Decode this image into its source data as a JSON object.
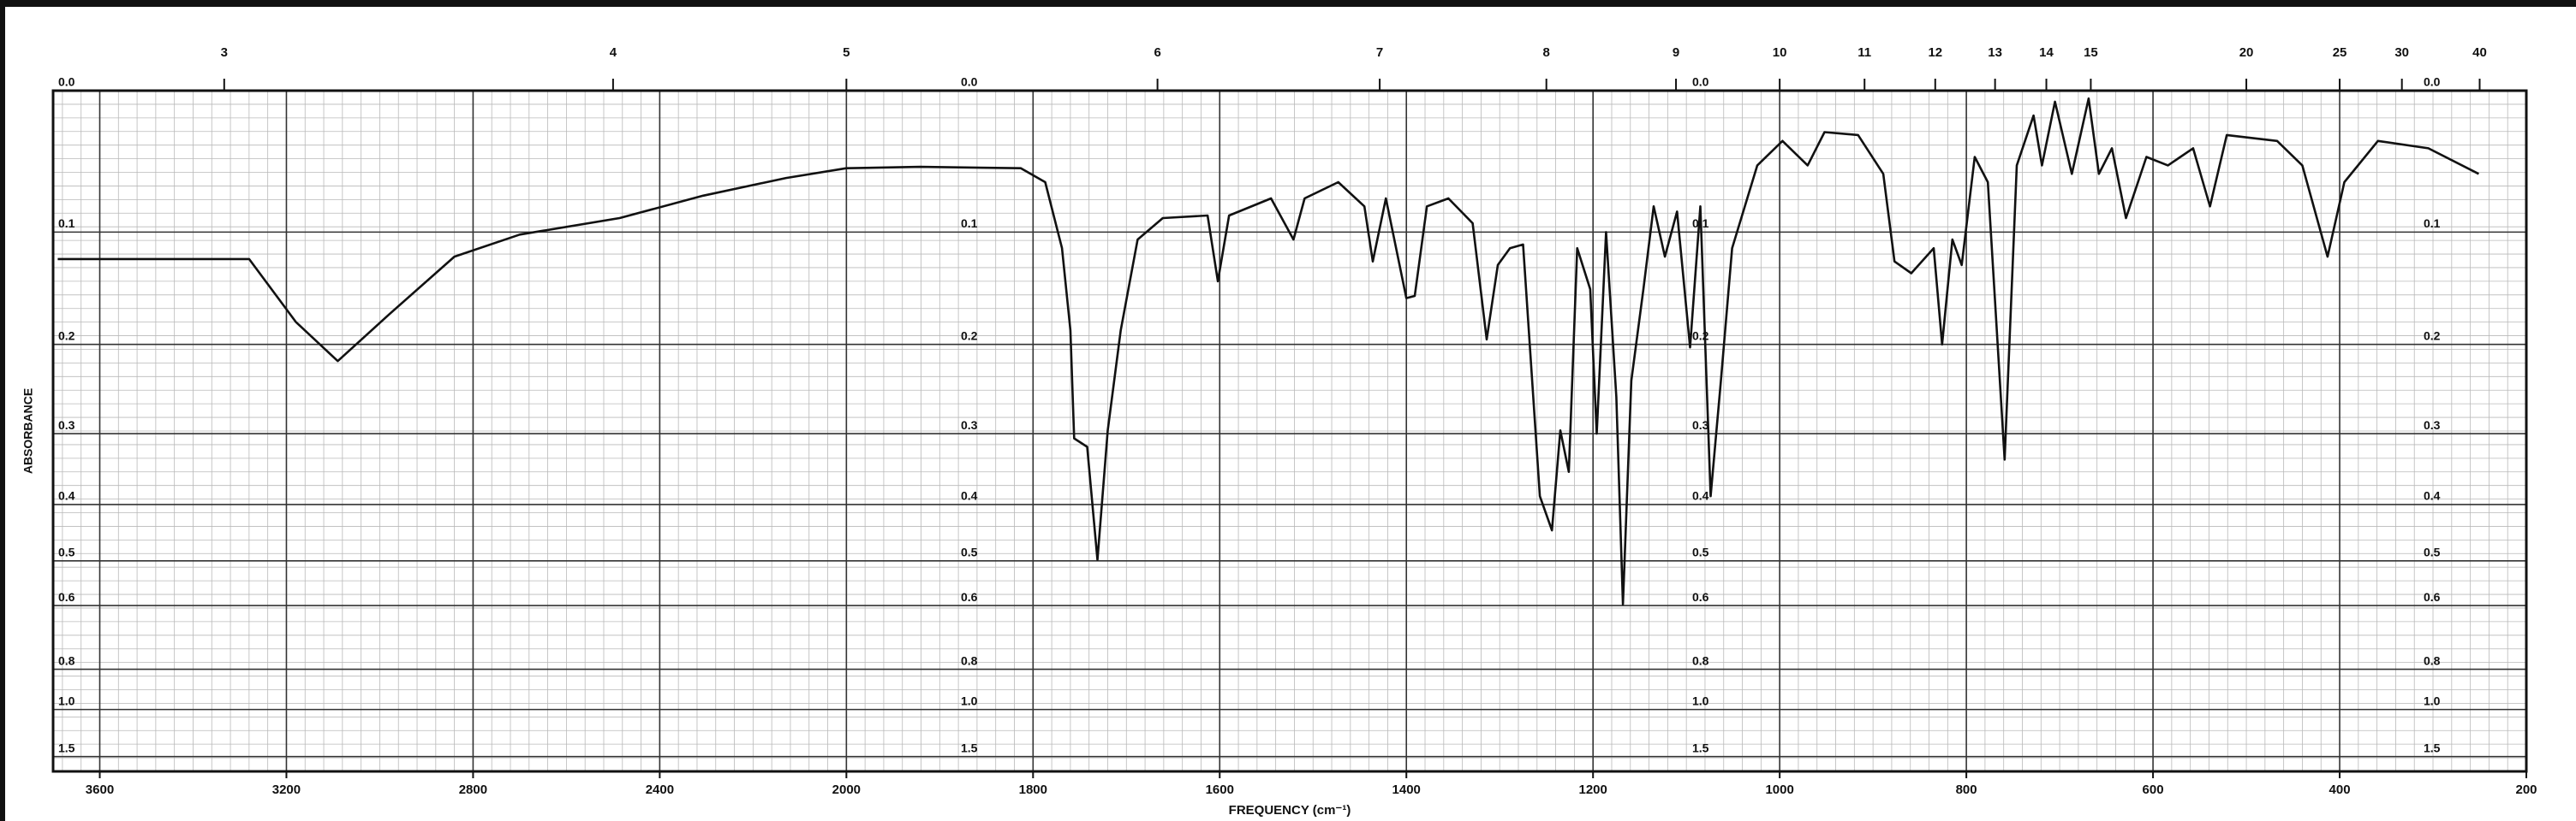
{
  "chart_data": {
    "type": "line",
    "xlabel": "FREQUENCY (cm⁻¹)",
    "ylabel": "ABSORBANCE",
    "x": [
      3690,
      3280,
      3180,
      3090,
      2980,
      2840,
      2700,
      2486,
      2307,
      2129,
      2000,
      1921,
      1813,
      1787,
      1769,
      1760,
      1756,
      1742,
      1731,
      1720,
      1706,
      1688,
      1661,
      1613,
      1602,
      1590,
      1545,
      1521,
      1509,
      1473,
      1445,
      1436,
      1422,
      1400,
      1391,
      1378,
      1355,
      1329,
      1314,
      1302,
      1289,
      1275,
      1257,
      1244,
      1235,
      1226,
      1217,
      1203,
      1196,
      1186,
      1175,
      1168,
      1159,
      1146,
      1135,
      1123,
      1110,
      1096,
      1085,
      1074,
      1063,
      1051,
      1024,
      997,
      970,
      952,
      916,
      889,
      877,
      859,
      835,
      826,
      815,
      805,
      791,
      777,
      759,
      746,
      728,
      719,
      705,
      687,
      669,
      658,
      644,
      629,
      607,
      584,
      557,
      539,
      521,
      467,
      440,
      413,
      395,
      359,
      305,
      251
    ],
    "values": [
      0.122,
      0.122,
      0.178,
      0.217,
      0.171,
      0.12,
      0.102,
      0.089,
      0.072,
      0.059,
      0.052,
      0.051,
      0.052,
      0.062,
      0.113,
      0.186,
      0.306,
      0.317,
      0.498,
      0.296,
      0.186,
      0.106,
      0.089,
      0.087,
      0.141,
      0.087,
      0.074,
      0.106,
      0.074,
      0.062,
      0.08,
      0.124,
      0.074,
      0.156,
      0.154,
      0.08,
      0.074,
      0.093,
      0.195,
      0.127,
      0.113,
      0.11,
      0.387,
      0.443,
      0.296,
      0.351,
      0.113,
      0.148,
      0.3,
      0.1,
      0.256,
      0.597,
      0.238,
      0.148,
      0.08,
      0.12,
      0.084,
      0.203,
      0.08,
      0.387,
      0.238,
      0.113,
      0.05,
      0.033,
      0.05,
      0.027,
      0.029,
      0.056,
      0.124,
      0.134,
      0.113,
      0.2,
      0.106,
      0.127,
      0.044,
      0.062,
      0.334,
      0.05,
      0.016,
      0.05,
      0.007,
      0.056,
      0.005,
      0.056,
      0.038,
      0.089,
      0.044,
      0.05,
      0.038,
      0.08,
      0.029,
      0.033,
      0.05,
      0.12,
      0.062,
      0.033,
      0.038,
      0.056
    ],
    "color": "#111111",
    "xlim": [
      3700,
      200
    ],
    "xticks": [
      3600,
      3200,
      2800,
      2400,
      2000,
      1800,
      1600,
      1400,
      1200,
      1000,
      800,
      600,
      400,
      200
    ],
    "x2ticks": [
      3,
      4,
      5,
      6,
      7,
      8,
      9,
      10,
      11,
      12,
      13,
      14,
      15,
      20,
      25,
      30,
      40
    ],
    "ylim": [
      0,
      2
    ],
    "yscale": "transmittance",
    "yticks": [
      {
        "value": 0,
        "label": "0.0"
      },
      0.1,
      0.2,
      0.3,
      0.4,
      0.5,
      0.6,
      0.8,
      {
        "value": 1,
        "label": "1.0"
      },
      1.5
    ],
    "grid": true
  }
}
